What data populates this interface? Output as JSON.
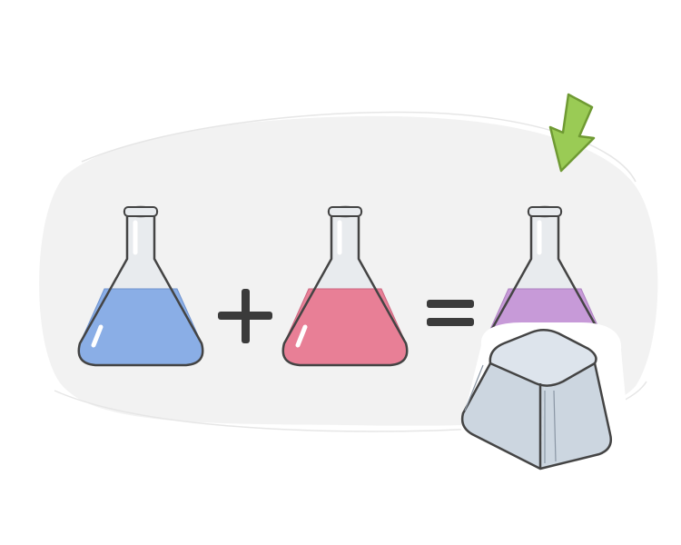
{
  "scene": {
    "background_color": "#ffffff",
    "blob_color": "#f2f2f2",
    "outline_color": "#444444",
    "glass_color": "#e8ebee",
    "glass_highlight_color": "#ffffff"
  },
  "flasks": [
    {
      "name": "blue-flask",
      "liquid_color": "#8aaee6",
      "liquid_dark": "#6f93cf"
    },
    {
      "name": "pink-flask",
      "liquid_color": "#e87f96",
      "liquid_dark": "#cc6680"
    },
    {
      "name": "purple-flask",
      "liquid_color": "#c79ad8",
      "liquid_dark": "#ad80c0"
    }
  ],
  "operators": [
    {
      "name": "plus-sign",
      "symbol": "+"
    },
    {
      "name": "equals-sign",
      "symbol": "="
    }
  ],
  "arrow": {
    "icon": "arrow-down-left-icon",
    "color": "#9acb55",
    "outline": "#6f9a33"
  },
  "key_cap": {
    "icon": "keyboard-key-icon",
    "color": "#ccd6e0",
    "top_color": "#dde4ec"
  }
}
